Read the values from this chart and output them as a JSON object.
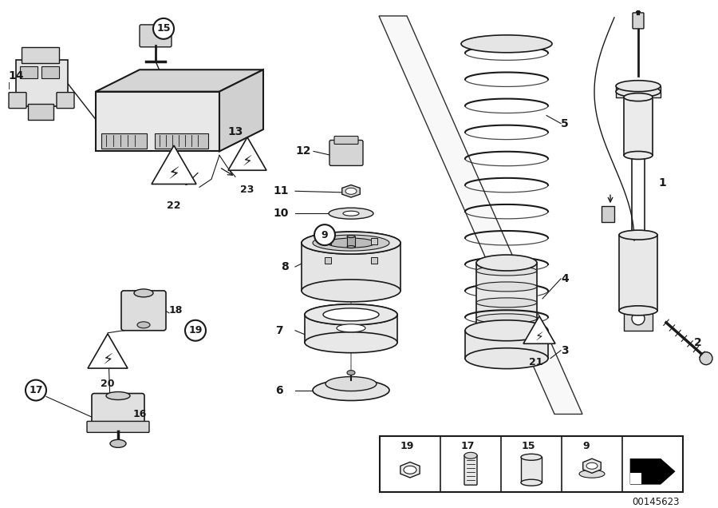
{
  "background_color": "#ffffff",
  "fig_width": 9.0,
  "fig_height": 6.36,
  "dpi": 100,
  "catalog_number": "00145623",
  "line_color": "#1a1a1a",
  "text_color": "#1a1a1a",
  "line_width": 1.0
}
